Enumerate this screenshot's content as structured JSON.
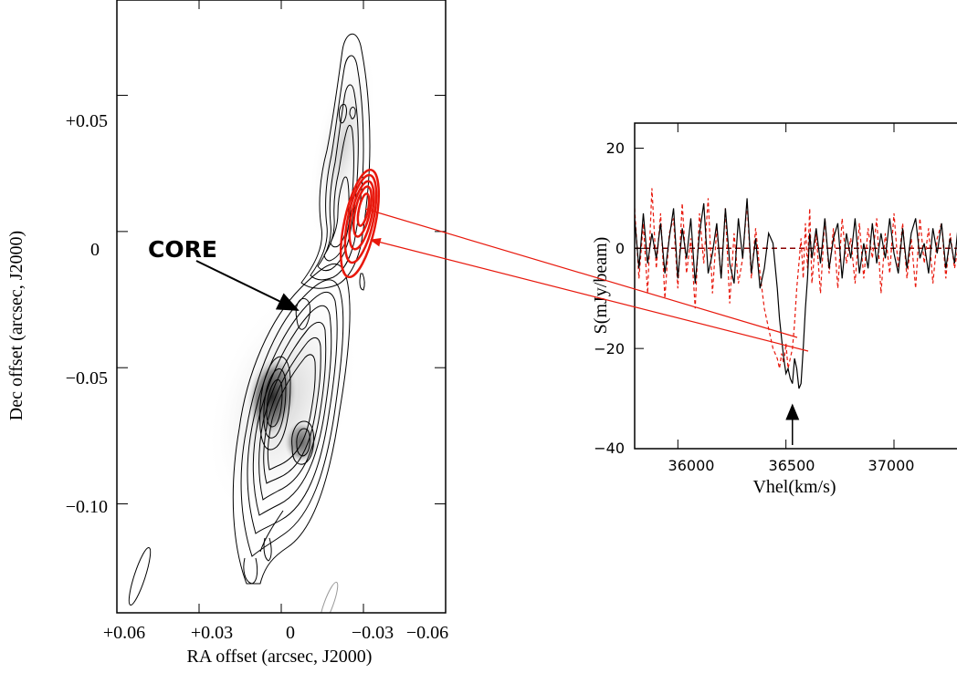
{
  "chart_data": [
    {
      "type": "contour-image",
      "xlabel": "RA offset (arcsec, J2000)",
      "ylabel": "Dec offset (arcsec, J2000)",
      "xlim": [
        0.06,
        -0.06
      ],
      "ylim": [
        -0.14,
        0.085
      ],
      "xticks": [
        {
          "value": 0.06,
          "label": "+0.06"
        },
        {
          "value": 0.03,
          "label": "+0.03"
        },
        {
          "value": 0.0,
          "label": "0"
        },
        {
          "value": -0.03,
          "label": "−0.03"
        },
        {
          "value": -0.06,
          "label": "−0.06"
        }
      ],
      "yticks": [
        {
          "value": 0.05,
          "label": "+0.05"
        },
        {
          "value": 0.0,
          "label": "0"
        },
        {
          "value": -0.05,
          "label": "−0.05"
        },
        {
          "value": -0.1,
          "label": "−0.10"
        }
      ],
      "annotation": {
        "text": "CORE",
        "points_to": [
          0.005,
          -0.024
        ]
      },
      "absorption_region_center": [
        -0.029,
        0.011
      ],
      "colors": {
        "continuum_contours": "#000000",
        "absorption_contours": "#e8180c"
      }
    },
    {
      "type": "line",
      "xlabel": "Vhel(km/s)",
      "ylabel": "S(mJy/beam)",
      "xlim": [
        35800,
        37300
      ],
      "ylim": [
        -40,
        25
      ],
      "xticks": [
        {
          "value": 36000,
          "label": "36000"
        },
        {
          "value": 36500,
          "label": "36500"
        },
        {
          "value": 37000,
          "label": "37000"
        }
      ],
      "yticks": [
        {
          "value": 20,
          "label": "20"
        },
        {
          "value": 0,
          "label": "0"
        },
        {
          "value": -20,
          "label": "−20"
        },
        {
          "value": -40,
          "label": "−40"
        }
      ],
      "zero_line": 0,
      "marker_arrow_x": 36530,
      "series": [
        {
          "style": "solid",
          "color": "#000000",
          "x": [
            35800,
            35820,
            35840,
            35860,
            35880,
            35900,
            35920,
            35940,
            35960,
            35980,
            36000,
            36020,
            36040,
            36060,
            36080,
            36100,
            36120,
            36140,
            36160,
            36180,
            36200,
            36220,
            36240,
            36260,
            36280,
            36300,
            36320,
            36340,
            36360,
            36380,
            36400,
            36420,
            36440,
            36460,
            36470,
            36480,
            36490,
            36500,
            36510,
            36520,
            36530,
            36540,
            36550,
            36560,
            36570,
            36580,
            36590,
            36600,
            36610,
            36620,
            36640,
            36660,
            36680,
            36700,
            36720,
            36740,
            36760,
            36780,
            36800,
            36820,
            36840,
            36860,
            36880,
            36900,
            36920,
            36940,
            36960,
            36980,
            37000,
            37020,
            37040,
            37060,
            37080,
            37100,
            37120,
            37140,
            37160,
            37180,
            37200,
            37220,
            37240,
            37260,
            37280,
            37300
          ],
          "values": [
            6,
            -4,
            7,
            -3,
            3,
            -2,
            5,
            -5,
            2,
            8,
            -6,
            4,
            -2,
            6,
            -7,
            3,
            9,
            -5,
            -1,
            5,
            -6,
            8,
            -3,
            -7,
            6,
            -2,
            10,
            -5,
            2,
            -8,
            -4,
            3,
            1,
            -8,
            -14,
            -18,
            -22,
            -25,
            -24,
            -26,
            -27,
            -22,
            -24,
            -28,
            -27,
            -20,
            -12,
            -6,
            3,
            -2,
            4,
            -3,
            6,
            -4,
            2,
            5,
            -6,
            3,
            -2,
            6,
            -5,
            1,
            -4,
            5,
            -3,
            3,
            -2,
            6,
            -1,
            -5,
            4,
            -4,
            3,
            6,
            -2,
            1,
            -5,
            4,
            -1,
            5,
            -4,
            2,
            -3,
            6
          ]
        },
        {
          "style": "dashed",
          "color": "#e8180c",
          "x": [
            35800,
            35820,
            35840,
            35860,
            35880,
            35900,
            35920,
            35940,
            35960,
            35980,
            36000,
            36020,
            36040,
            36060,
            36080,
            36100,
            36120,
            36140,
            36160,
            36180,
            36200,
            36220,
            36240,
            36260,
            36280,
            36300,
            36320,
            36340,
            36360,
            36380,
            36400,
            36420,
            36440,
            36460,
            36470,
            36480,
            36490,
            36500,
            36510,
            36520,
            36530,
            36540,
            36550,
            36560,
            36570,
            36580,
            36590,
            36600,
            36610,
            36620,
            36640,
            36660,
            36680,
            36700,
            36720,
            36740,
            36760,
            36780,
            36800,
            36820,
            36840,
            36860,
            36880,
            36900,
            36920,
            36940,
            36960,
            36980,
            37000,
            37020,
            37040,
            37060,
            37080,
            37100,
            37120,
            37140,
            37160,
            37180,
            37200,
            37220,
            37240,
            37260,
            37280,
            37300
          ],
          "values": [
            8,
            -6,
            5,
            -9,
            12,
            -4,
            7,
            -10,
            3,
            6,
            -8,
            9,
            -5,
            2,
            -12,
            7,
            -3,
            10,
            -9,
            4,
            -6,
            8,
            -11,
            3,
            -7,
            -2,
            9,
            -6,
            4,
            -5,
            -12,
            -16,
            -20,
            -22,
            -24,
            -21,
            -23,
            -19,
            -24,
            -22,
            -20,
            -15,
            -8,
            -3,
            2,
            -6,
            5,
            -4,
            8,
            -7,
            3,
            -9,
            6,
            -5,
            4,
            -8,
            6,
            -3,
            2,
            -7,
            5,
            -6,
            4,
            -2,
            6,
            -9,
            3,
            -5,
            7,
            -4,
            5,
            -6,
            2,
            -8,
            6,
            -3,
            4,
            -7,
            2,
            5,
            -6,
            3,
            -4,
            1
          ]
        }
      ],
      "connector_color": "#e8180c"
    }
  ]
}
